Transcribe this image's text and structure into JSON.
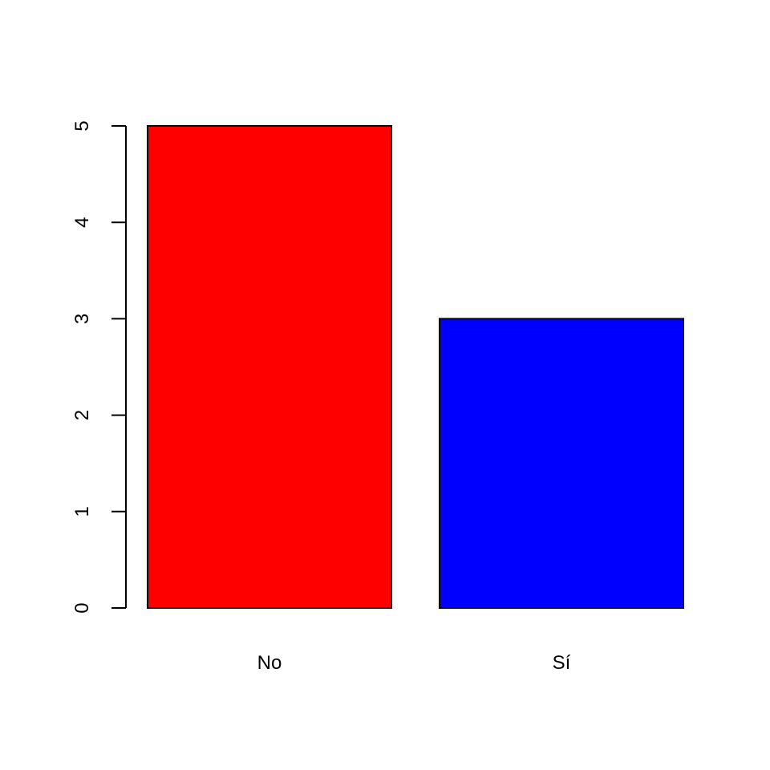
{
  "chart_data": {
    "type": "bar",
    "categories": [
      "No",
      "Sí"
    ],
    "values": [
      5,
      3
    ],
    "colors": [
      "#ff0000",
      "#0000ff"
    ],
    "title": "",
    "xlabel": "",
    "ylabel": "",
    "ylim": [
      0,
      5
    ],
    "yticks": [
      0,
      1,
      2,
      3,
      4,
      5
    ],
    "grid": false,
    "legend": "none"
  }
}
